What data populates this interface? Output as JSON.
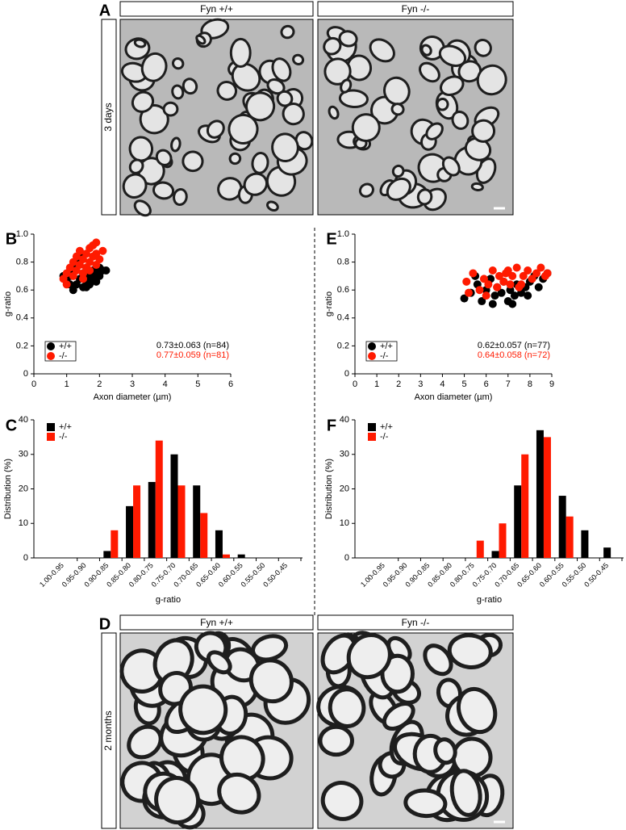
{
  "micrographs": [
    {
      "panel": "A",
      "headers": [
        "Fyn +/+",
        "Fyn -/-"
      ],
      "time": "3 days"
    },
    {
      "panel": "D",
      "headers": [
        "Fyn +/+",
        "Fyn -/-"
      ],
      "time": "2 months"
    }
  ],
  "chart_data": [
    {
      "panel": "B",
      "type": "scatter",
      "xlabel": "Axon diameter (µm)",
      "ylabel": "g-ratio",
      "xlim": [
        0,
        6
      ],
      "xticks": [
        0,
        1,
        2,
        3,
        4,
        5,
        6
      ],
      "ylim": [
        0,
        1
      ],
      "yticks": [
        0,
        0.2,
        0.4,
        0.6,
        0.8,
        {
          "value": 1,
          "label": "1.0"
        }
      ],
      "legend": "lower left",
      "series": [
        {
          "name": "+/+",
          "color": "#000000",
          "x": [
            1.0,
            1.1,
            1.2,
            1.2,
            1.3,
            1.3,
            1.4,
            1.5,
            1.5,
            1.6,
            1.6,
            1.7,
            1.7,
            1.8,
            1.8,
            1.9,
            1.9,
            2.0,
            2.0,
            2.1,
            1.1,
            1.4,
            1.6,
            2.2,
            0.9
          ],
          "values": [
            0.66,
            0.7,
            0.6,
            0.75,
            0.64,
            0.8,
            0.68,
            0.62,
            0.72,
            0.76,
            0.66,
            0.7,
            0.64,
            0.74,
            0.68,
            0.72,
            0.66,
            0.7,
            0.76,
            0.74,
            0.64,
            0.84,
            0.62,
            0.74,
            0.7
          ]
        },
        {
          "name": "-/-",
          "color": "#ff1a00",
          "x": [
            0.9,
            1.0,
            1.1,
            1.2,
            1.2,
            1.3,
            1.3,
            1.4,
            1.4,
            1.5,
            1.5,
            1.6,
            1.6,
            1.7,
            1.7,
            1.8,
            1.8,
            1.9,
            1.9,
            2.0,
            1.0,
            1.5,
            1.7,
            1.9,
            2.1
          ],
          "values": [
            0.68,
            0.72,
            0.76,
            0.7,
            0.8,
            0.74,
            0.84,
            0.78,
            0.88,
            0.72,
            0.82,
            0.86,
            0.76,
            0.8,
            0.9,
            0.84,
            0.92,
            0.86,
            0.94,
            0.82,
            0.64,
            0.68,
            0.74,
            0.78,
            0.88
          ]
        }
      ],
      "annotations": [
        {
          "text": "0.73±0.063 (n=84)",
          "color": "#000000"
        },
        {
          "text": "0.77±0.059 (n=81)",
          "color": "#ff1a00"
        }
      ]
    },
    {
      "panel": "C",
      "type": "bar",
      "xlabel": "g-ratio",
      "ylabel": "Distribution (%)",
      "categories": [
        "1.00-0.95",
        "0.95-0.90",
        "0.90-0.85",
        "0.85-0.80",
        "0.80-0.75",
        "0.75-0.70",
        "0.70-0.65",
        "0.65-0.60",
        "0.60-0.55",
        "0.55-0.50",
        "0.50-0.45"
      ],
      "ylim": [
        0,
        40
      ],
      "yticks": [
        0,
        10,
        20,
        30,
        40
      ],
      "legend": "upper left",
      "series": [
        {
          "name": "+/+",
          "color": "#000000",
          "values": [
            0,
            0,
            2,
            15,
            22,
            30,
            21,
            8,
            1,
            0,
            0
          ]
        },
        {
          "name": "-/-",
          "color": "#ff1a00",
          "values": [
            0,
            0,
            8,
            21,
            34,
            21,
            13,
            1,
            0,
            0,
            0
          ]
        }
      ]
    },
    {
      "panel": "E",
      "type": "scatter",
      "xlabel": "Axon diameter (µm)",
      "ylabel": "g-ratio",
      "xlim": [
        0,
        9
      ],
      "xticks": [
        0,
        1,
        2,
        3,
        4,
        5,
        6,
        7,
        8,
        9
      ],
      "ylim": [
        0,
        1
      ],
      "yticks": [
        0,
        0.2,
        0.4,
        0.6,
        0.8,
        {
          "value": 1,
          "label": "1.0"
        }
      ],
      "legend": "lower left",
      "series": [
        {
          "name": "+/+",
          "color": "#000000",
          "x": [
            5.0,
            5.3,
            5.6,
            5.8,
            6.0,
            6.2,
            6.4,
            6.5,
            6.7,
            6.8,
            7.0,
            7.1,
            7.3,
            7.4,
            7.6,
            7.8,
            8.0,
            8.2,
            8.4,
            8.6,
            5.5,
            6.3,
            7.2,
            7.9,
            8.8
          ],
          "values": [
            0.54,
            0.58,
            0.64,
            0.52,
            0.6,
            0.68,
            0.56,
            0.62,
            0.58,
            0.66,
            0.52,
            0.6,
            0.56,
            0.64,
            0.58,
            0.62,
            0.66,
            0.7,
            0.62,
            0.68,
            0.7,
            0.5,
            0.5,
            0.56,
            0.72
          ]
        },
        {
          "name": "-/-",
          "color": "#ff1a00",
          "x": [
            5.1,
            5.4,
            5.7,
            5.9,
            6.1,
            6.3,
            6.5,
            6.6,
            6.8,
            6.9,
            7.1,
            7.2,
            7.4,
            7.5,
            7.7,
            7.9,
            8.1,
            8.3,
            8.5,
            8.7,
            5.2,
            6.0,
            7.0,
            7.6,
            8.8
          ],
          "values": [
            0.66,
            0.72,
            0.6,
            0.68,
            0.64,
            0.74,
            0.62,
            0.7,
            0.66,
            0.72,
            0.64,
            0.7,
            0.76,
            0.62,
            0.7,
            0.74,
            0.68,
            0.72,
            0.76,
            0.7,
            0.58,
            0.56,
            0.74,
            0.64,
            0.72
          ]
        }
      ],
      "annotations": [
        {
          "text": "0.62±0.057 (n=77)",
          "color": "#000000"
        },
        {
          "text": "0.64±0.058 (n=72)",
          "color": "#ff1a00"
        }
      ]
    },
    {
      "panel": "F",
      "type": "bar",
      "xlabel": "g-ratio",
      "ylabel": "Distribution (%)",
      "categories": [
        "1.00-0.95",
        "0.95-0.90",
        "0.90-0.85",
        "0.85-0.80",
        "0.80-0.75",
        "0.75-0.70",
        "0.70-0.65",
        "0.65-0.60",
        "0.60-0.55",
        "0.55-0.50",
        "0.50-0.45"
      ],
      "ylim": [
        0,
        40
      ],
      "yticks": [
        0,
        10,
        20,
        30,
        40
      ],
      "legend": "upper left",
      "series": [
        {
          "name": "+/+",
          "color": "#000000",
          "values": [
            0,
            0,
            0,
            0,
            0,
            2,
            21,
            37,
            18,
            8,
            3
          ]
        },
        {
          "name": "-/-",
          "color": "#ff1a00",
          "values": [
            0,
            0,
            0,
            0,
            5,
            10,
            30,
            35,
            12,
            0,
            0
          ]
        }
      ]
    }
  ]
}
